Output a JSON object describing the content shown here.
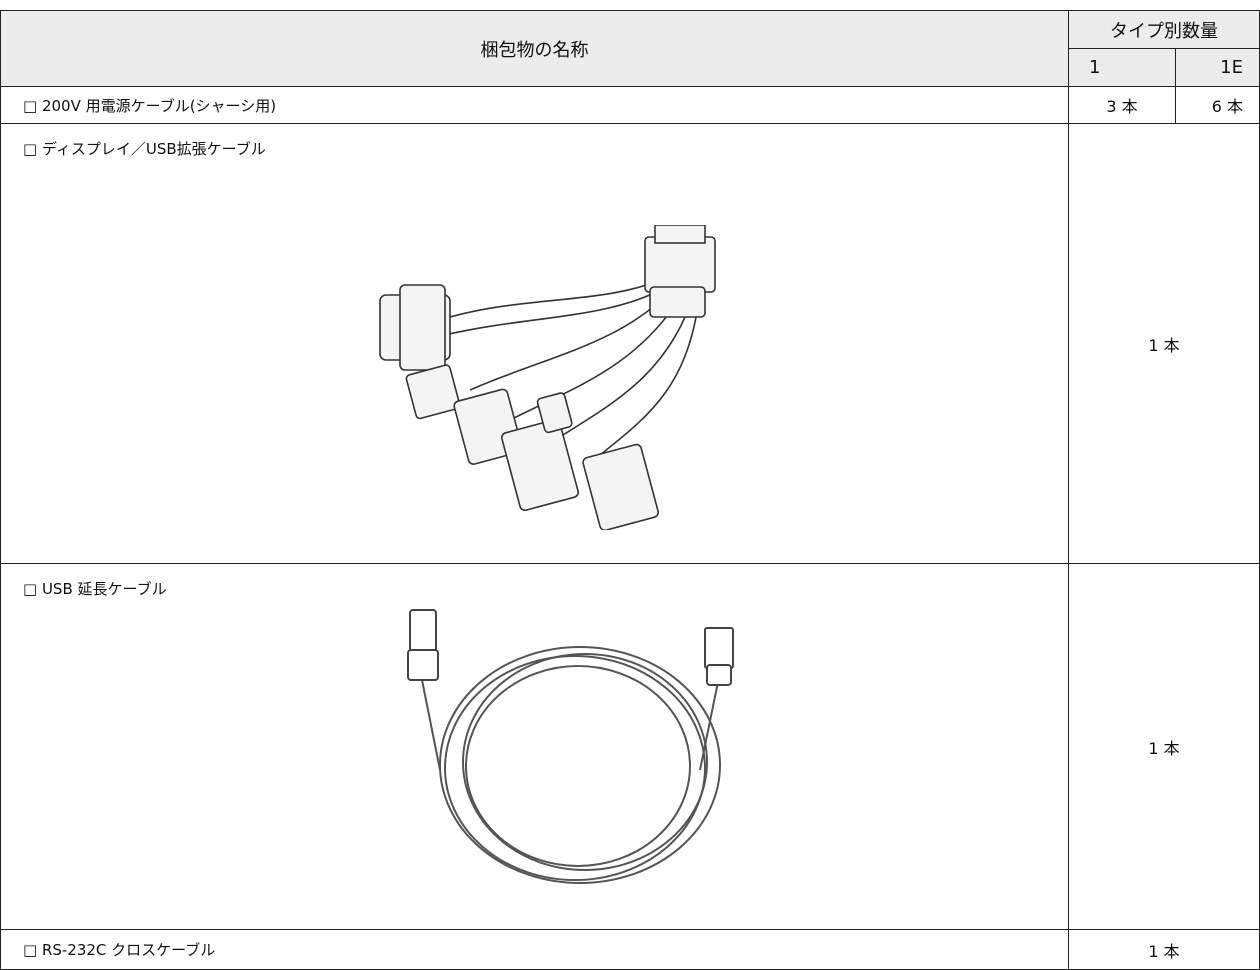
{
  "table": {
    "header": {
      "name": "梱包物の名称",
      "quantity": "タイプ別数量",
      "types": [
        "1",
        "1E"
      ]
    },
    "rows": [
      {
        "name": "□ 200V 用電源ケーブル(シャーシ用)",
        "quantity": [
          "3 本",
          "6 本"
        ]
      },
      {
        "name": "□ ディスプレイ／USB拡張ケーブル",
        "quantity": [
          "1 本"
        ]
      },
      {
        "name": "□ USB 延長ケーブル",
        "quantity": [
          "1 本"
        ]
      },
      {
        "name": "□ RS-232C クロスケーブル",
        "quantity": [
          "1 本"
        ]
      }
    ]
  }
}
